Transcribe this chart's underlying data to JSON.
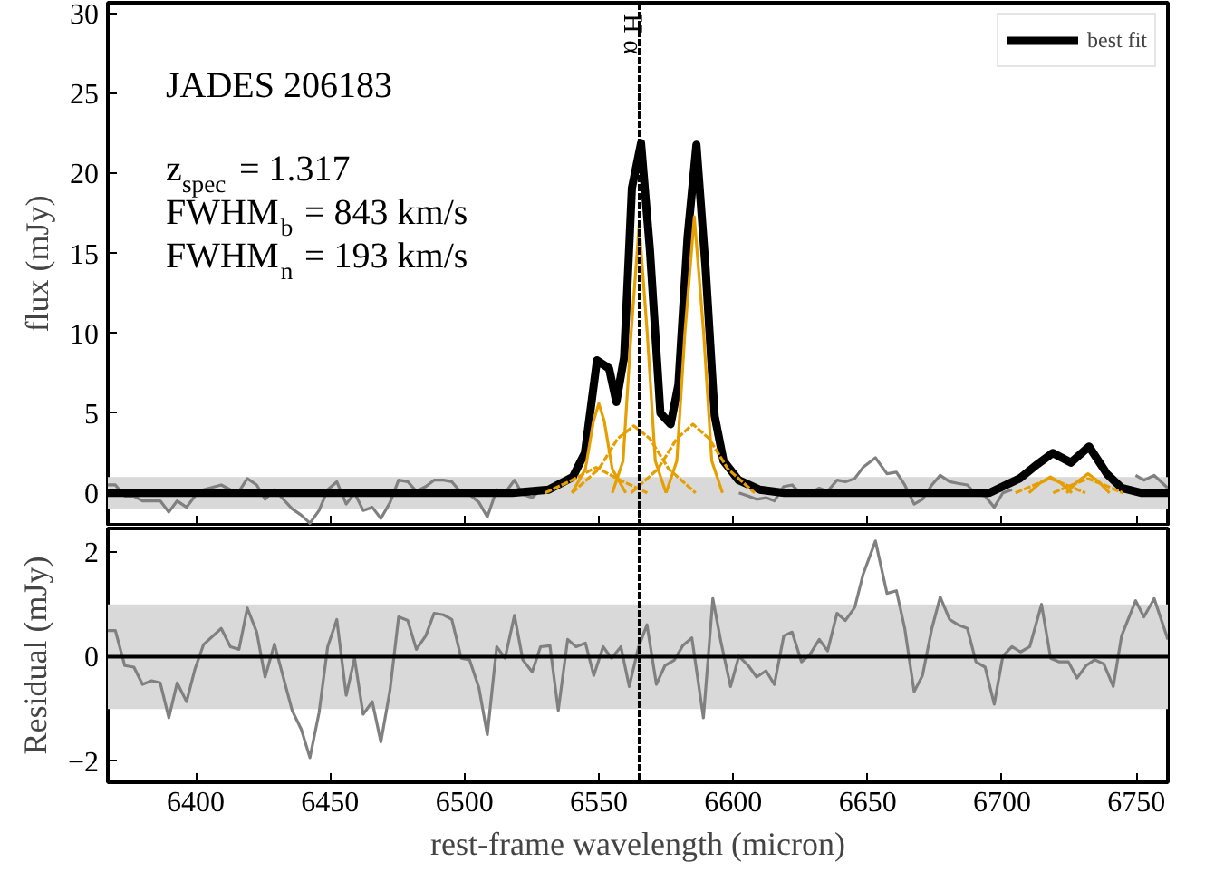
{
  "chart_data": [
    {
      "type": "line",
      "ylabel": "flux (mJy)",
      "xlim": [
        6367.3,
        6761.7
      ],
      "ylim": [
        -2,
        30.7
      ],
      "xticks": [
        6400,
        6450,
        6500,
        6550,
        6600,
        6650,
        6700,
        6750
      ],
      "yticks": [
        0,
        5,
        10,
        15,
        20,
        25,
        30
      ],
      "tick_labels": "y",
      "grid": false,
      "legend": "top right",
      "annotations": [
        "JADES 206183",
        "z$_{spec}$ = 1.317",
        "FWHM$_{b}$ = 843 km/s",
        "FWHM$_{n}$ = 193 km/s"
      ],
      "bands": [
        {
          "axis": "y",
          "from": -1,
          "to": 1,
          "color": "#d9d9d9"
        }
      ],
      "ref_lines": [
        {
          "axis": "x",
          "value": 6565,
          "label": "H α",
          "color": "#000000",
          "line_style": "dashed"
        }
      ],
      "series": [
        {
          "color": "#808080",
          "line_style": "solid",
          "x": [
            6367.3,
            6370.1,
            6373.6,
            6377,
            6380.2,
            6383.6,
            6386.8,
            6390,
            6393.1,
            6396.6,
            6399.7,
            6402.9,
            6409.5,
            6412.9,
            6416.1,
            6419.2,
            6422.7,
            6425.8,
            6429.3,
            6435.9,
            6439.3,
            6442.5,
            6445.9,
            6449.1,
            6452.5,
            6456,
            6459.1,
            6462.3,
            6465.7,
            6468.9,
            6472.3,
            6475.5,
            6478.9,
            6482.1,
            6485.6,
            6488.7,
            6492.2,
            6495.3,
            6498.8,
            6501.9,
            6505.4,
            6508.5,
            6512,
            6515.1,
            6518.6,
            6521.7,
            6525.2,
            6528.3,
            6531.8,
            6534.9,
            6538.4,
            6541.5,
            6545,
            6548.1,
            6551.6,
            6554.7,
            6558.2,
            6561.3,
            6564.8,
            6567.9,
            6571.4,
            6574.6,
            6578,
            6581.2,
            6584.6,
            6588.9,
            6592.4,
            6595.5,
            6599,
            6602.1,
            6605.6,
            6608.7,
            6612.2,
            6615.3,
            6618.8,
            6621.9,
            6625.4,
            6628.5,
            6632,
            6635.1,
            6638.6,
            6641.7,
            6645.2,
            6648.3,
            6652.9,
            6657.2,
            6660.7,
            6663.8,
            6667.3,
            6670.4,
            6673.9,
            6677,
            6680.5,
            6683.6,
            6687.1,
            6690.3,
            6693.7,
            6697.1,
            6700.3,
            6703.7,
            6706.9,
            6710.3,
            6714.7,
            6718.1,
            6721.3,
            6724.7,
            6727.9,
            6731.3,
            6734.5,
            6737.9,
            6741.4,
            6744.5,
            6749.7,
            6752.8,
            6756.6,
            6761.7
          ],
          "values": [
            0.5,
            0.5,
            -0.2,
            -0.2,
            -0.5,
            -0.5,
            -0.5,
            -1.2,
            -0.5,
            -0.9,
            -0.2,
            0.2,
            0.5,
            0.2,
            0.1,
            0.9,
            0.5,
            -0.4,
            0.2,
            -1.0,
            -1.4,
            -1.9,
            -1.1,
            0.2,
            0.7,
            -0.7,
            0.0,
            -1.1,
            -0.9,
            -1.6,
            -0.6,
            0.8,
            0.7,
            0.1,
            0.4,
            0.8,
            0.8,
            0.7,
            0.0,
            -0.1,
            -0.6,
            -1.5,
            0.2,
            0.0,
            0.8,
            -0.1,
            -0.3,
            0.2,
            null,
            null,
            null,
            null,
            null,
            null,
            null,
            null,
            null,
            null,
            null,
            null,
            null,
            null,
            null,
            null,
            null,
            null,
            null,
            null,
            null,
            0.0,
            -0.2,
            -0.4,
            -0.3,
            -0.5,
            0.4,
            0.5,
            -0.1,
            0.0,
            0.3,
            0.1,
            0.8,
            0.7,
            0.9,
            1.6,
            2.2,
            1.2,
            1.3,
            0.5,
            -0.7,
            -0.4,
            0.5,
            1.1,
            0.7,
            0.6,
            0.5,
            -0.1,
            -0.2,
            -0.9,
            0.0,
            0.2,
            null,
            null,
            null,
            null,
            null,
            null,
            null,
            null,
            null,
            null,
            null,
            null,
            1.1,
            0.8,
            1.1,
            0.3
          ]
        },
        {
          "name": "best fit",
          "color": "#000000",
          "line_style": "solid",
          "x": [
            6367.3,
            6517.9,
            6531.3,
            6540.3,
            6544.8,
            6549.3,
            6553.8,
            6556.5,
            6559.4,
            6562.3,
            6565.7,
            6569,
            6572.9,
            6576.7,
            6579.6,
            6583,
            6586.3,
            6589.7,
            6593.1,
            6596.4,
            6602,
            6609.9,
            6618.9,
            6695.3,
            6706.5,
            6713.2,
            6718.9,
            6725.6,
            6732.4,
            6739,
            6744.6,
            6752,
            6761.7
          ],
          "values": [
            0,
            0,
            0.2,
            1.0,
            2.5,
            8.3,
            7.8,
            5.7,
            8.5,
            19.1,
            21.9,
            15.2,
            5.0,
            4.3,
            6.8,
            16.0,
            21.8,
            14.1,
            4.8,
            2.0,
            0.8,
            0.2,
            0,
            0,
            0.9,
            1.8,
            2.5,
            1.9,
            2.9,
            1.2,
            0.3,
            0,
            0
          ]
        },
        {
          "color": "#e69f00",
          "line_style": "solid",
          "x": [
            6540,
            6545,
            6548,
            6550,
            6552,
            6555,
            6560
          ],
          "values": [
            0,
            1.5,
            4.5,
            5.6,
            4.5,
            1.5,
            0
          ]
        },
        {
          "color": "#e69f00",
          "line_style": "solid",
          "x": [
            6555,
            6559,
            6562,
            6565,
            6568,
            6571,
            6575
          ],
          "values": [
            0,
            2,
            10,
            16.8,
            10,
            2,
            0
          ]
        },
        {
          "color": "#e69f00",
          "line_style": "solid",
          "x": [
            6575,
            6579,
            6582,
            6585.5,
            6589,
            6592,
            6596
          ],
          "values": [
            0,
            2,
            10,
            17.3,
            10,
            2,
            0
          ]
        },
        {
          "color": "#e69f00",
          "line_style": "dashed",
          "x": [
            6530,
            6540,
            6549,
            6558,
            6568
          ],
          "values": [
            0,
            0.8,
            1.6,
            0.8,
            0
          ]
        },
        {
          "color": "#e69f00",
          "line_style": "dashed",
          "x": [
            6540,
            6550,
            6557,
            6563,
            6569,
            6576,
            6586
          ],
          "values": [
            0,
            1.5,
            3.4,
            4.2,
            3.4,
            1.5,
            0
          ]
        },
        {
          "color": "#e69f00",
          "line_style": "dashed",
          "x": [
            6562,
            6572,
            6579,
            6585,
            6591,
            6598,
            6608
          ],
          "values": [
            0,
            1.5,
            3.4,
            4.3,
            3.4,
            1.5,
            0
          ]
        },
        {
          "color": "#e69f00",
          "line_style": "solid",
          "x": [
            6710,
            6714,
            6718,
            6722,
            6726
          ],
          "values": [
            0,
            0.6,
            1.0,
            0.6,
            0
          ]
        },
        {
          "color": "#e69f00",
          "line_style": "solid",
          "x": [
            6724,
            6728,
            6732,
            6736,
            6740
          ],
          "values": [
            0,
            0.7,
            1.2,
            0.7,
            0
          ]
        },
        {
          "color": "#e69f00",
          "line_style": "dashed",
          "x": [
            6705,
            6712,
            6718,
            6724,
            6731
          ],
          "values": [
            0,
            0.5,
            0.9,
            0.5,
            0
          ]
        },
        {
          "color": "#e69f00",
          "line_style": "dashed",
          "x": [
            6719,
            6726,
            6732,
            6738,
            6745
          ],
          "values": [
            0,
            0.5,
            0.9,
            0.5,
            0
          ]
        }
      ]
    },
    {
      "type": "line",
      "xlabel": "rest-frame wavelength (micron)",
      "ylabel": "Residual (mJy)",
      "xlim": [
        6367.3,
        6761.7
      ],
      "ylim": [
        -2.4,
        2.45
      ],
      "xticks": [
        6400,
        6450,
        6500,
        6550,
        6600,
        6650,
        6700,
        6750
      ],
      "yticks": [
        -2,
        0,
        2
      ],
      "grid": false,
      "bands": [
        {
          "axis": "y",
          "from": -1,
          "to": 1,
          "color": "#d9d9d9"
        }
      ],
      "ref_lines": [
        {
          "axis": "y",
          "value": 0,
          "color": "#000000",
          "line_style": "solid"
        },
        {
          "axis": "x",
          "value": 6565,
          "color": "#000000",
          "line_style": "dashed"
        }
      ],
      "series": [
        {
          "color": "#808080",
          "line_style": "solid",
          "x": [
            6367.3,
            6370.1,
            6373.6,
            6377,
            6380.2,
            6383.6,
            6386.8,
            6390,
            6393.1,
            6396.6,
            6399.7,
            6402.9,
            6409.5,
            6412.9,
            6416.1,
            6419.2,
            6422.7,
            6425.8,
            6429.3,
            6435.9,
            6439.3,
            6442.5,
            6445.9,
            6449.1,
            6452.5,
            6456,
            6459.1,
            6462.3,
            6465.7,
            6468.9,
            6472.3,
            6475.5,
            6478.9,
            6482.1,
            6485.6,
            6488.7,
            6492.2,
            6495.3,
            6498.8,
            6501.9,
            6505.4,
            6508.5,
            6512,
            6515.1,
            6518.6,
            6521.7,
            6525.2,
            6528.3,
            6531.8,
            6534.9,
            6538.4,
            6541.5,
            6545,
            6548.1,
            6551.6,
            6554.7,
            6558.2,
            6561.3,
            6564.8,
            6567.9,
            6571.4,
            6574.6,
            6578,
            6581.2,
            6584.6,
            6588.9,
            6592.4,
            6595.5,
            6599,
            6602.1,
            6605.6,
            6608.7,
            6612.2,
            6615.3,
            6618.8,
            6621.9,
            6625.4,
            6628.5,
            6632,
            6635.1,
            6638.6,
            6641.7,
            6645.2,
            6648.3,
            6652.9,
            6657.2,
            6660.7,
            6663.8,
            6667.3,
            6670.4,
            6673.9,
            6677,
            6680.5,
            6683.6,
            6687.1,
            6690.3,
            6693.7,
            6697.1,
            6700.3,
            6703.7,
            6706.9,
            6710.3,
            6714.7,
            6718.1,
            6721.3,
            6724.7,
            6727.9,
            6731.3,
            6734.5,
            6737.9,
            6741.4,
            6744.5,
            6749.7,
            6752.8,
            6756.6,
            6761.7
          ],
          "values": [
            0.5,
            0.5,
            -0.17,
            -0.2,
            -0.53,
            -0.46,
            -0.5,
            -1.17,
            -0.5,
            -0.86,
            -0.24,
            0.23,
            0.54,
            0.19,
            0.14,
            0.93,
            0.47,
            -0.39,
            0.24,
            -1.03,
            -1.39,
            -1.93,
            -1.07,
            0.19,
            0.71,
            -0.74,
            -0.03,
            -1.1,
            -0.86,
            -1.63,
            -0.64,
            0.76,
            0.69,
            0.14,
            0.4,
            0.83,
            0.8,
            0.71,
            -0.03,
            -0.06,
            -0.6,
            -1.49,
            0.19,
            -0.03,
            0.79,
            -0.06,
            -0.29,
            0.19,
            0.21,
            -1.03,
            0.33,
            0.19,
            0.26,
            -0.36,
            0.19,
            -0.03,
            0.19,
            -0.57,
            0.19,
            0.61,
            -0.53,
            -0.17,
            -0.07,
            0.21,
            0.36,
            -1.17,
            1.11,
            0.26,
            -0.57,
            0.01,
            -0.17,
            -0.39,
            -0.27,
            -0.53,
            0.4,
            0.47,
            -0.1,
            0.04,
            0.33,
            0.11,
            0.83,
            0.69,
            0.94,
            1.57,
            2.21,
            1.21,
            1.26,
            0.54,
            -0.67,
            -0.36,
            0.54,
            1.14,
            0.71,
            0.61,
            0.54,
            -0.1,
            -0.2,
            -0.91,
            0.01,
            0.19,
            0.09,
            0.19,
            1.0,
            -0.03,
            -0.1,
            -0.1,
            -0.41,
            -0.17,
            -0.06,
            -0.14,
            -0.57,
            0.4,
            1.07,
            0.76,
            1.11,
            0.33
          ]
        }
      ]
    }
  ]
}
